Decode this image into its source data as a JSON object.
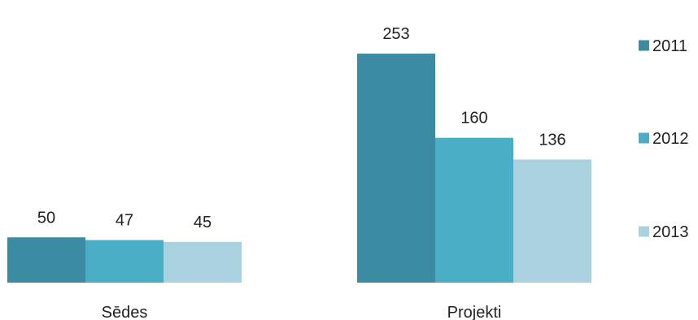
{
  "chart_data": {
    "type": "bar",
    "categories": [
      "Sēdes",
      "Projekti"
    ],
    "series": [
      {
        "name": "2011",
        "color": "#3b8ba3",
        "values": [
          50,
          253
        ]
      },
      {
        "name": "2012",
        "color": "#4aaec6",
        "values": [
          47,
          160
        ]
      },
      {
        "name": "2013",
        "color": "#a9d1de",
        "values": [
          45,
          136
        ]
      }
    ],
    "title": "",
    "xlabel": "",
    "ylabel": "",
    "ylim": [
      0,
      300
    ],
    "grid": false,
    "legend_position": "right"
  }
}
